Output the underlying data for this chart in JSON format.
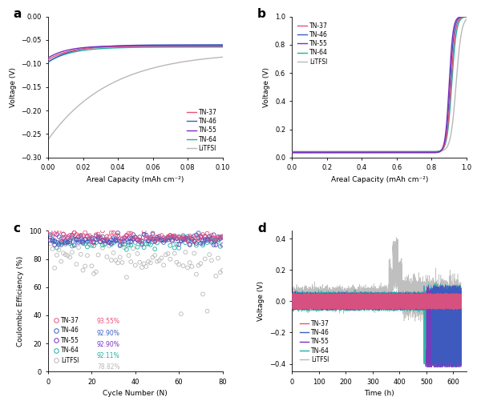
{
  "colors": {
    "TN-37": "#e8507a",
    "TN-46": "#3a5ec0",
    "TN-55": "#7b2fbe",
    "TN-64": "#20b0a0",
    "LiTFSI": "#b8b8b8"
  },
  "legend_labels": [
    "TN-37",
    "TN-46",
    "TN-55",
    "TN-64",
    "LiTFSI"
  ],
  "panel_a": {
    "title": "a",
    "xlabel": "Areal Capacity (mAh cm⁻²)",
    "ylabel": "Voltage (V)",
    "xlim": [
      0,
      0.1
    ],
    "ylim": [
      -0.3,
      0.0
    ],
    "xticks": [
      0.0,
      0.02,
      0.04,
      0.06,
      0.08,
      0.1
    ],
    "yticks": [
      0.0,
      -0.05,
      -0.1,
      -0.15,
      -0.2,
      -0.25,
      -0.3
    ]
  },
  "panel_b": {
    "title": "b",
    "xlabel": "Areal Capacity (mAh cm⁻²)",
    "ylabel": "Voltage (V)",
    "xlim": [
      0,
      1.0
    ],
    "ylim": [
      0.0,
      1.0
    ],
    "xticks": [
      0.0,
      0.2,
      0.4,
      0.6,
      0.8,
      1.0
    ],
    "yticks": [
      0.0,
      0.2,
      0.4,
      0.6,
      0.8,
      1.0
    ]
  },
  "panel_c": {
    "title": "c",
    "xlabel": "Cycle Number (N)",
    "ylabel": "Coulombic Efficiency (%)",
    "xlim": [
      0,
      80
    ],
    "ylim": [
      0,
      100
    ],
    "xticks": [
      0,
      20,
      40,
      60,
      80
    ],
    "yticks": [
      0,
      20,
      40,
      60,
      80,
      100
    ],
    "ce_labels": {
      "TN-37": "93.55%",
      "TN-46": "92.90%",
      "TN-55": "92.90%",
      "TN-64": "92.11%",
      "LiTFSI": "78.82%"
    }
  },
  "panel_d": {
    "title": "d",
    "xlabel": "Time (h)",
    "ylabel": "Voltage (V)",
    "xlim": [
      0,
      650
    ],
    "ylim": [
      -0.45,
      0.45
    ],
    "xticks": [
      0,
      100,
      200,
      300,
      400,
      500,
      600
    ],
    "yticks": [
      -0.4,
      -0.2,
      0.0,
      0.2,
      0.4
    ]
  }
}
